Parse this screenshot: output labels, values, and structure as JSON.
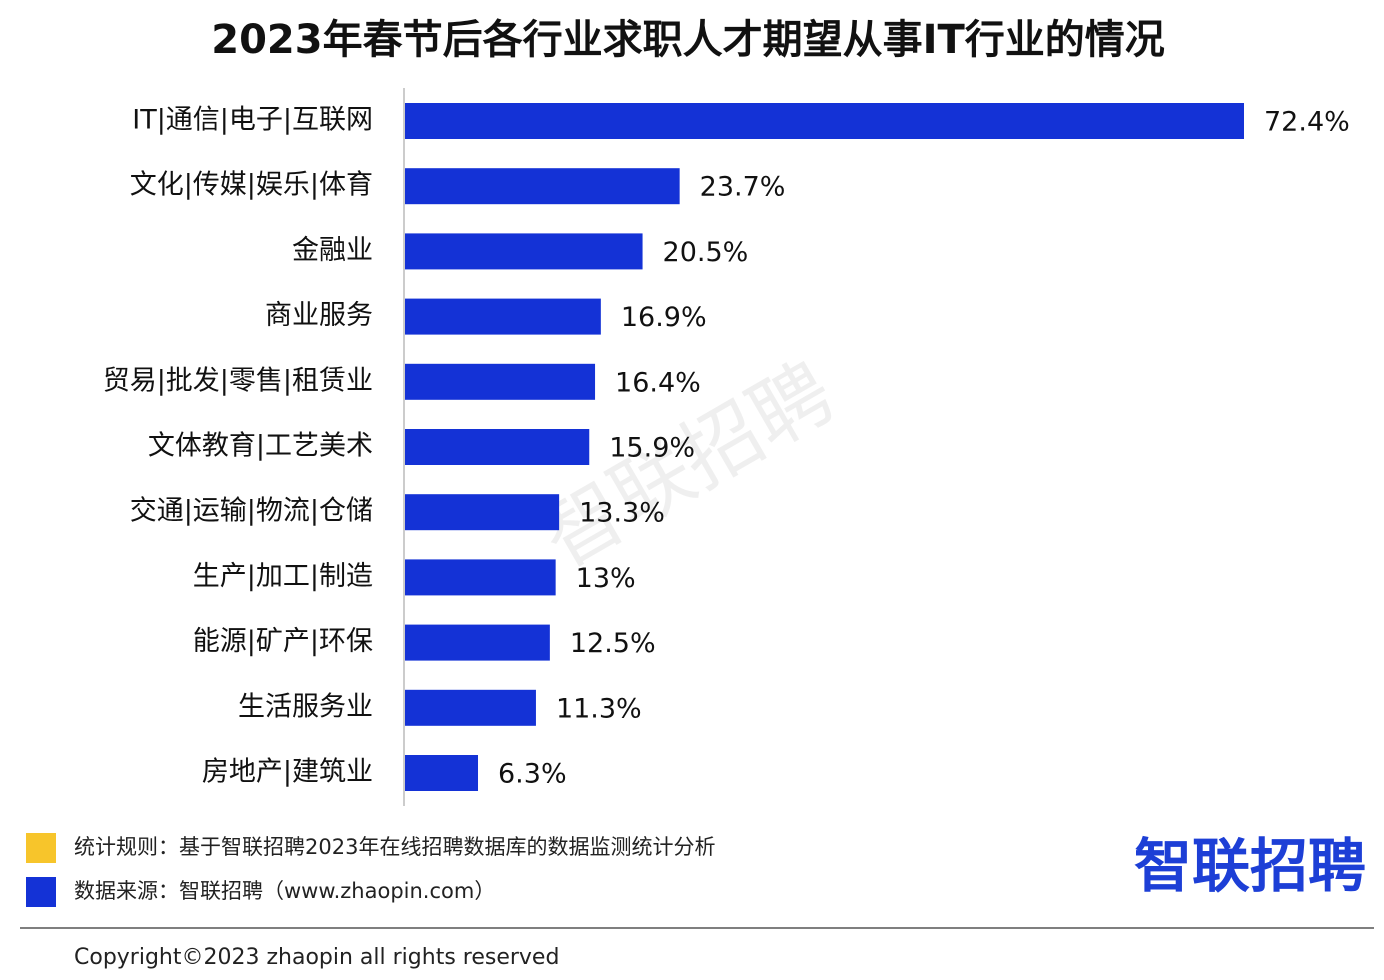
{
  "chart_data": {
    "type": "bar",
    "orientation": "horizontal",
    "title": "2023年春节后各行业求职人才期望从事IT行业的情况",
    "categories": [
      "IT|通信|电子|互联网",
      "文化|传媒|娱乐|体育",
      "金融业",
      "商业服务",
      "贸易|批发|零售|租赁业",
      "文体教育|工艺美术",
      "交通|运输|物流|仓储",
      "生产|加工|制造",
      "能源|矿产|环保",
      "生活服务业",
      "房地产|建筑业"
    ],
    "values": [
      72.4,
      23.7,
      20.5,
      16.9,
      16.4,
      15.9,
      13.3,
      13,
      12.5,
      11.3,
      6.3
    ],
    "value_labels": [
      "72.4%",
      "23.7%",
      "20.5%",
      "16.9%",
      "16.4%",
      "15.9%",
      "13.3%",
      "13%",
      "12.5%",
      "11.3%",
      "6.3%"
    ],
    "color": "#1432d6"
  },
  "notes": [
    {
      "text": "统计规则：基于智联招聘2023年在线招聘数据库的数据监测统计分析",
      "color": "#f7c52b"
    },
    {
      "text": "数据来源：智联招聘（www.zhaopin.com）",
      "color": "#1432d6"
    }
  ],
  "logo": "智联招聘",
  "watermark": "智联招聘",
  "copyright": "Copyright©2023 zhaopin all rights reserved"
}
